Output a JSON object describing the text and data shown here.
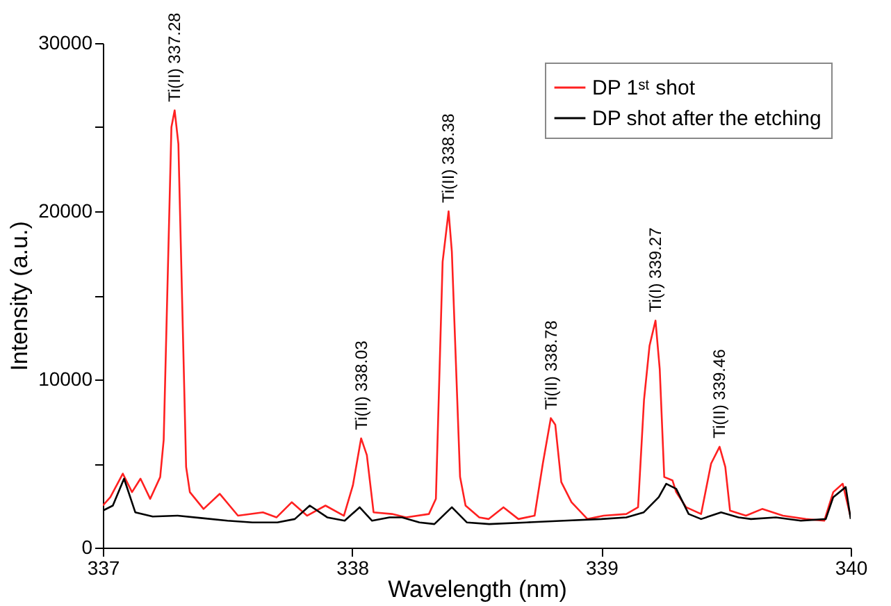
{
  "chart_data": {
    "type": "line",
    "xlabel": "Wavelength (nm)",
    "ylabel": "Intensity (a.u.)",
    "xlim": [
      337,
      340
    ],
    "xticks": [
      337,
      338,
      339,
      340
    ],
    "ylim": [
      0,
      30000
    ],
    "yticks": [
      0,
      {
        "value": 5000,
        "label": null
      },
      10000,
      {
        "value": 15000,
        "label": null
      },
      20000,
      {
        "value": 25000,
        "label": null
      },
      30000
    ],
    "grid": false,
    "legend": "top right",
    "marker": "none",
    "line_style": "solid",
    "series": [
      {
        "name": "DP 1ˢᵗ shot",
        "color": "#ff2020",
        "x": [
          337.0,
          337.03,
          337.08,
          337.117,
          337.151,
          337.19,
          337.23,
          337.244,
          337.275,
          337.288,
          337.303,
          337.334,
          337.349,
          337.404,
          337.469,
          337.542,
          337.642,
          337.697,
          337.758,
          337.819,
          337.893,
          337.967,
          338.003,
          338.036,
          338.059,
          338.086,
          338.16,
          338.216,
          338.308,
          338.336,
          338.363,
          338.387,
          338.4,
          338.433,
          338.455,
          338.51,
          338.548,
          338.607,
          338.667,
          338.732,
          338.765,
          338.797,
          338.815,
          338.839,
          338.88,
          338.944,
          339.009,
          339.1,
          339.147,
          339.171,
          339.193,
          339.217,
          339.234,
          339.252,
          339.285,
          339.3,
          339.34,
          339.4,
          339.44,
          339.474,
          339.497,
          339.516,
          339.58,
          339.645,
          339.728,
          339.82,
          339.894,
          339.93,
          339.968,
          340.0
        ],
        "values": [
          2500,
          3000,
          4400,
          3300,
          4100,
          2900,
          4200,
          6400,
          25000,
          26000,
          24000,
          4800,
          3300,
          2300,
          3200,
          1900,
          2100,
          1800,
          2700,
          1900,
          2500,
          1900,
          3700,
          6500,
          5500,
          2100,
          2000,
          1800,
          2000,
          2900,
          17000,
          20000,
          17600,
          4200,
          2500,
          1800,
          1700,
          2400,
          1700,
          1900,
          5000,
          7700,
          7300,
          3900,
          2700,
          1700,
          1900,
          2000,
          2400,
          8800,
          12000,
          13500,
          10600,
          4200,
          4000,
          3300,
          2400,
          2000,
          5000,
          6000,
          4800,
          2200,
          1900,
          2300,
          1900,
          1700,
          1600,
          3300,
          3800,
          1800
        ]
      },
      {
        "name": "DP shot after the etching",
        "color": "#000000",
        "x": [
          337.0,
          337.04,
          337.085,
          337.13,
          337.2,
          337.3,
          337.4,
          337.5,
          337.6,
          337.7,
          337.77,
          337.83,
          337.9,
          337.97,
          338.03,
          338.08,
          338.15,
          338.2,
          338.27,
          338.33,
          338.4,
          338.46,
          338.55,
          338.7,
          338.85,
          339.0,
          339.1,
          339.17,
          339.23,
          339.26,
          339.3,
          339.35,
          339.4,
          339.48,
          339.55,
          339.6,
          339.7,
          339.8,
          339.9,
          339.93,
          339.98,
          340.0
        ],
        "values": [
          2200,
          2500,
          4100,
          2100,
          1850,
          1900,
          1750,
          1600,
          1500,
          1500,
          1700,
          2500,
          1800,
          1600,
          2400,
          1600,
          1800,
          1800,
          1500,
          1400,
          2400,
          1500,
          1400,
          1500,
          1600,
          1700,
          1800,
          2100,
          3000,
          3800,
          3500,
          2000,
          1700,
          2100,
          1800,
          1700,
          1800,
          1600,
          1700,
          3000,
          3600,
          1700
        ]
      }
    ],
    "annotations": [
      {
        "text": "Ti(II) 337.28",
        "x": 337.288,
        "y": 26000
      },
      {
        "text": "Ti(II) 338.03",
        "x": 338.036,
        "y": 6500
      },
      {
        "text": "Ti(II) 338.38",
        "x": 338.387,
        "y": 20000
      },
      {
        "text": "Ti(II) 338.78",
        "x": 338.797,
        "y": 7700
      },
      {
        "text": "Ti(I) 339.27",
        "x": 339.217,
        "y": 13500
      },
      {
        "text": "Ti(II) 339.46",
        "x": 339.474,
        "y": 6000
      }
    ]
  }
}
